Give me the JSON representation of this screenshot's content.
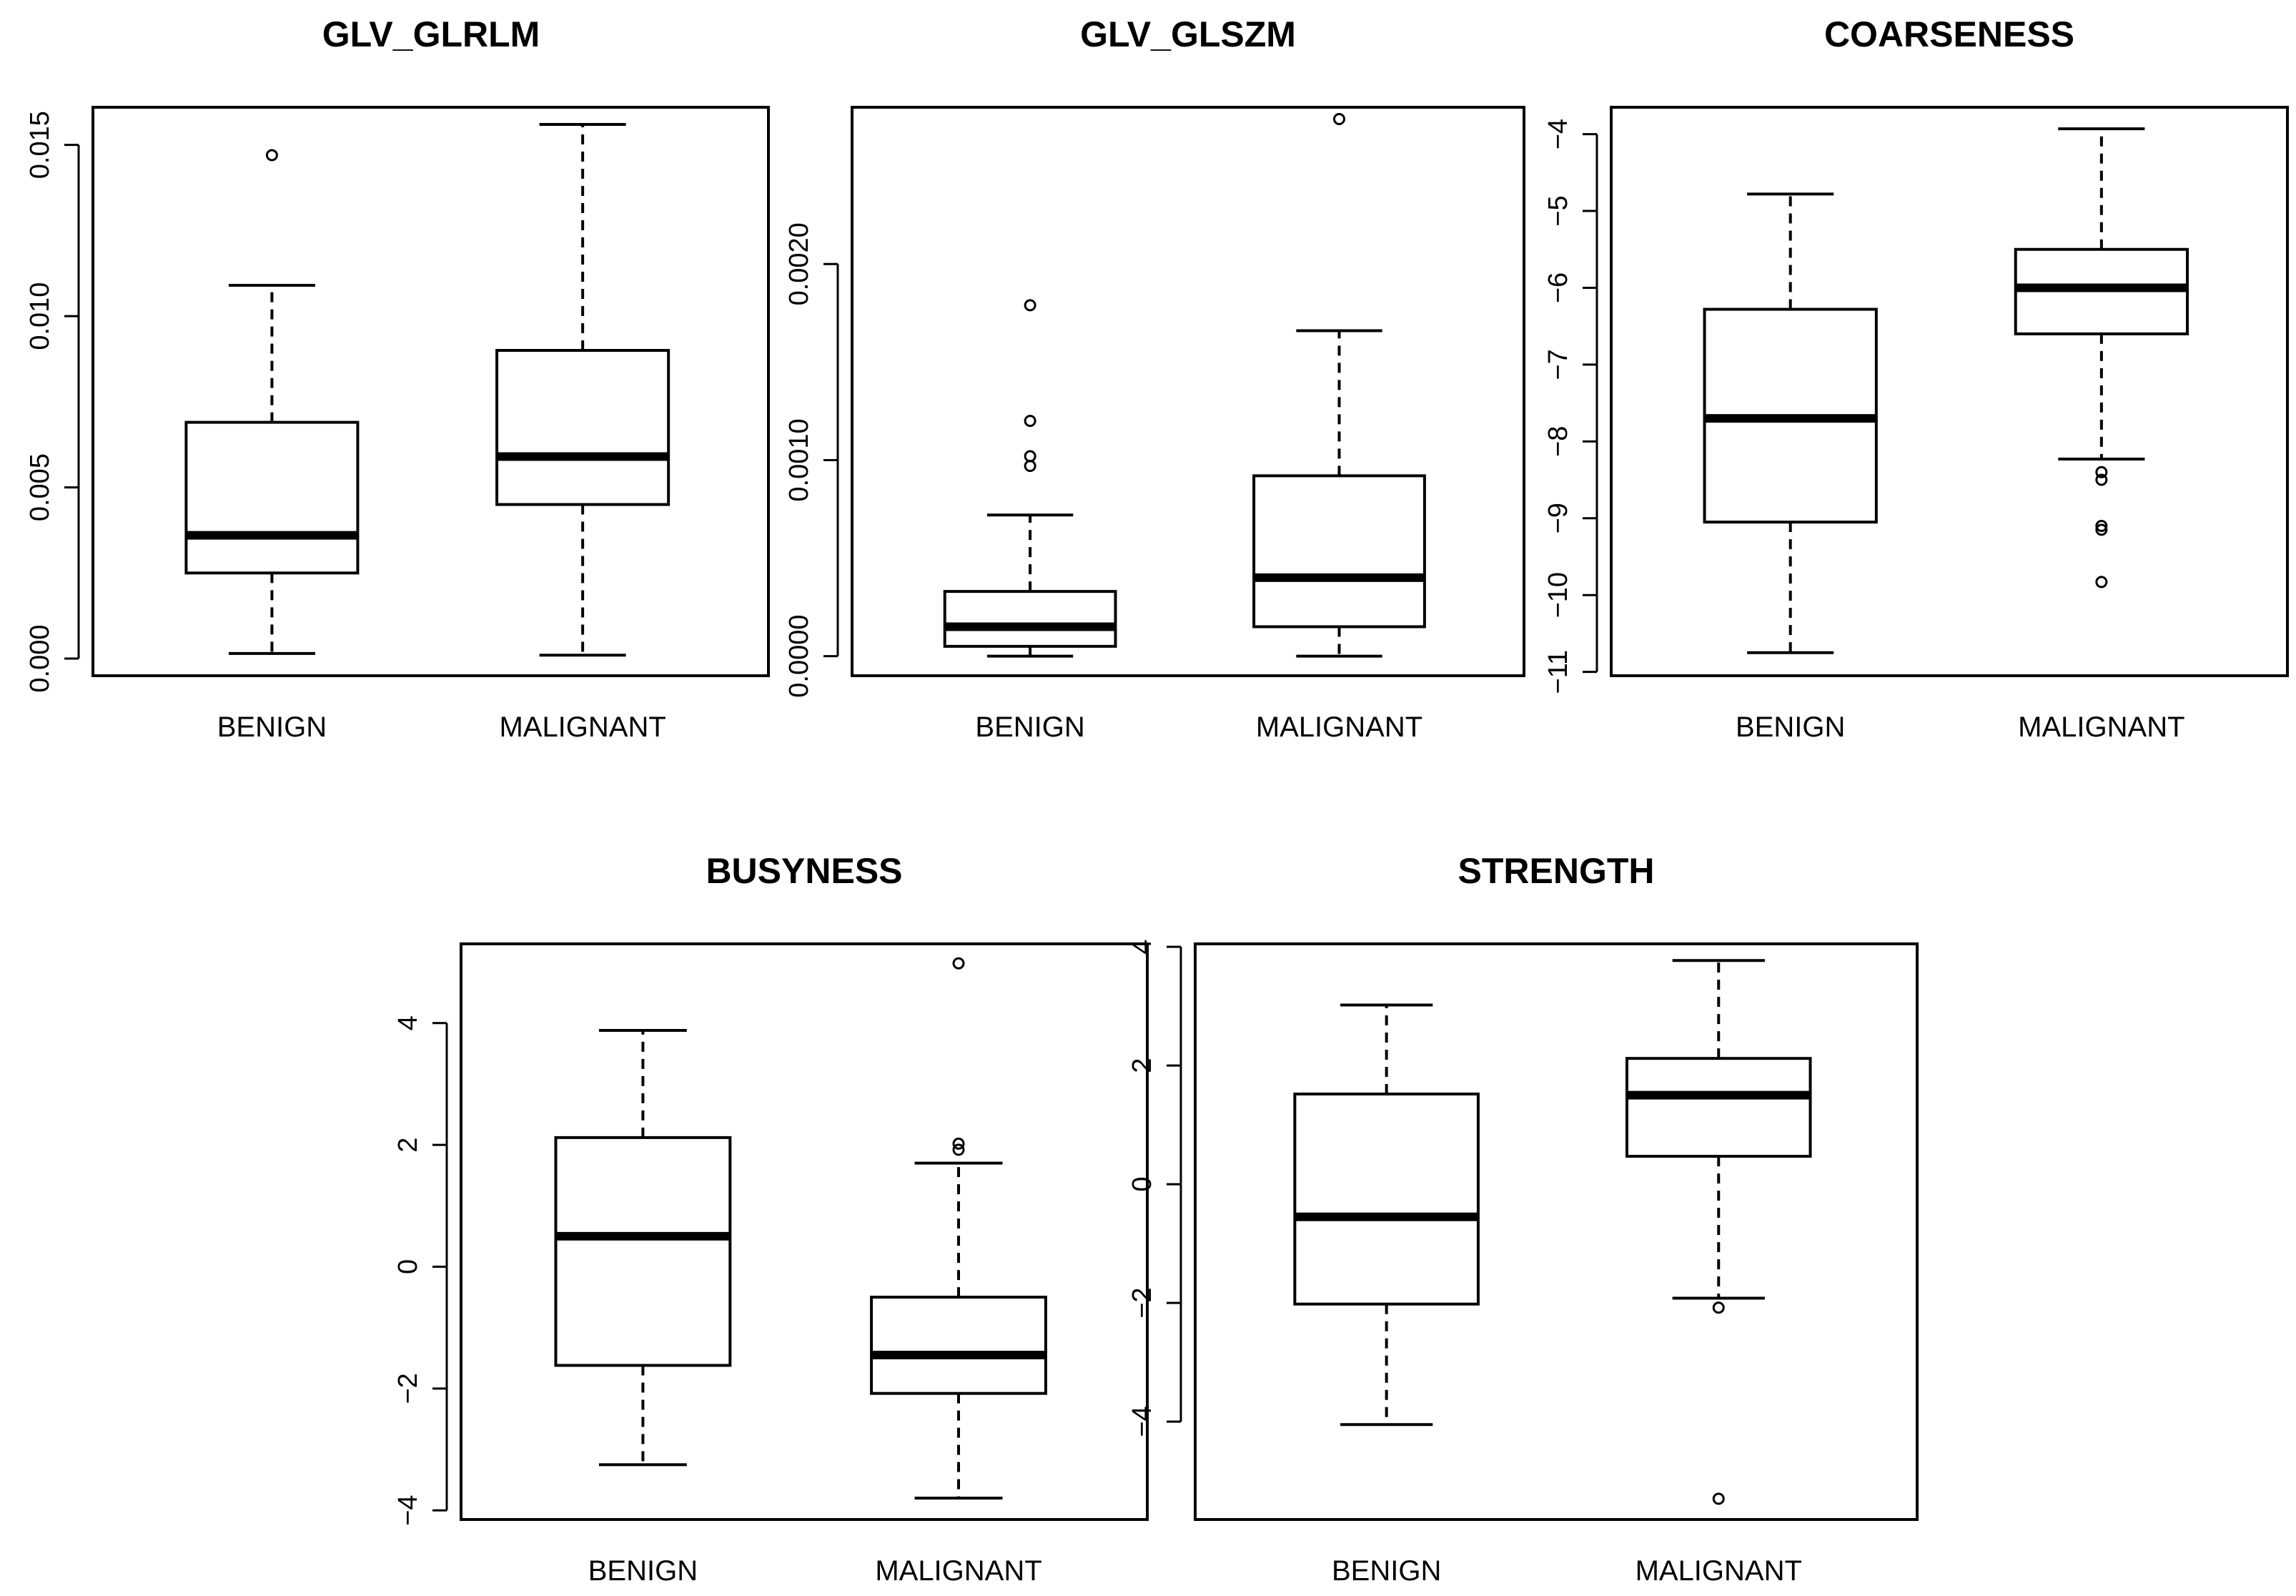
{
  "chart_data": [
    {
      "type": "boxplot",
      "title": "GLV_GLRLM",
      "categories": [
        "BENIGN",
        "MALIGNANT"
      ],
      "ylim": [
        -0.0005,
        0.0161
      ],
      "yticks": [
        0.0,
        0.005,
        0.01,
        0.015
      ],
      "ytick_labels": [
        "0.000",
        "0.005",
        "0.010",
        "0.015"
      ],
      "ytick_rotation": "vertical",
      "series": [
        {
          "name": "BENIGN",
          "whisker_low": 0.00015,
          "q1": 0.0025,
          "median": 0.0036,
          "q3": 0.0069,
          "whisker_high": 0.0109,
          "outliers": [
            0.0147
          ]
        },
        {
          "name": "MALIGNANT",
          "whisker_low": 0.0001,
          "q1": 0.0045,
          "median": 0.0059,
          "q3": 0.009,
          "whisker_high": 0.0156,
          "outliers": []
        }
      ]
    },
    {
      "type": "boxplot",
      "title": "GLV_GLSZM",
      "categories": [
        "BENIGN",
        "MALIGNANT"
      ],
      "ylim": [
        -0.0001,
        0.0028
      ],
      "yticks": [
        0.0,
        0.001,
        0.002
      ],
      "ytick_labels": [
        "0.0000",
        "0.0010",
        "0.0020"
      ],
      "ytick_rotation": "vertical",
      "series": [
        {
          "name": "BENIGN",
          "whisker_low": 0.0,
          "q1": 5e-05,
          "median": 0.00015,
          "q3": 0.00033,
          "whisker_high": 0.00072,
          "outliers": [
            0.00097,
            0.00102,
            0.0012,
            0.00179
          ]
        },
        {
          "name": "MALIGNANT",
          "whisker_low": 0.0,
          "q1": 0.00015,
          "median": 0.0004,
          "q3": 0.00092,
          "whisker_high": 0.00166,
          "outliers": [
            0.00274
          ]
        }
      ]
    },
    {
      "type": "boxplot",
      "title": "COARSENESS",
      "categories": [
        "BENIGN",
        "MALIGNANT"
      ],
      "ylim": [
        -11.05,
        -3.65
      ],
      "yticks": [
        -11,
        -10,
        -9,
        -8,
        -7,
        -6,
        -5,
        -4
      ],
      "ytick_labels": [
        "−11",
        "−10",
        "−9",
        "−8",
        "−7",
        "−6",
        "−5",
        "−4"
      ],
      "ytick_rotation": "vertical",
      "series": [
        {
          "name": "BENIGN",
          "whisker_low": -10.75,
          "q1": -9.05,
          "median": -7.7,
          "q3": -6.28,
          "whisker_high": -4.78,
          "outliers": []
        },
        {
          "name": "MALIGNANT",
          "whisker_low": -8.23,
          "q1": -6.6,
          "median": -6.0,
          "q3": -5.5,
          "whisker_high": -3.93,
          "outliers": [
            -8.4,
            -8.5,
            -9.1,
            -9.15,
            -9.83
          ]
        }
      ]
    },
    {
      "type": "boxplot",
      "title": "BUSYNESS",
      "categories": [
        "BENIGN",
        "MALIGNANT"
      ],
      "ylim": [
        -4.15,
        5.3
      ],
      "yticks": [
        -4,
        -2,
        0,
        2,
        4
      ],
      "ytick_labels": [
        "−4",
        "−2",
        "0",
        "2",
        "4"
      ],
      "ytick_rotation": "vertical",
      "series": [
        {
          "name": "BENIGN",
          "whisker_low": -3.25,
          "q1": -1.62,
          "median": 0.5,
          "q3": 2.12,
          "whisker_high": 3.88,
          "outliers": []
        },
        {
          "name": "MALIGNANT",
          "whisker_low": -3.8,
          "q1": -2.08,
          "median": -1.45,
          "q3": -0.5,
          "whisker_high": 1.7,
          "outliers": [
            1.92,
            2.02,
            4.98
          ]
        }
      ]
    },
    {
      "type": "boxplot",
      "title": "STRENGTH",
      "categories": [
        "BENIGN",
        "MALIGNANT"
      ],
      "ylim": [
        -5.65,
        4.05
      ],
      "yticks": [
        -4,
        -2,
        0,
        2,
        4
      ],
      "ytick_labels": [
        "−4",
        "−2",
        "0",
        "2",
        "4"
      ],
      "ytick_rotation": "vertical",
      "series": [
        {
          "name": "BENIGN",
          "whisker_low": -4.05,
          "q1": -2.02,
          "median": -0.55,
          "q3": 1.52,
          "whisker_high": 3.02,
          "outliers": []
        },
        {
          "name": "MALIGNANT",
          "whisker_low": -1.92,
          "q1": 0.47,
          "median": 1.5,
          "q3": 2.12,
          "whisker_high": 3.77,
          "outliers": [
            -2.08,
            -5.3
          ]
        }
      ]
    }
  ]
}
